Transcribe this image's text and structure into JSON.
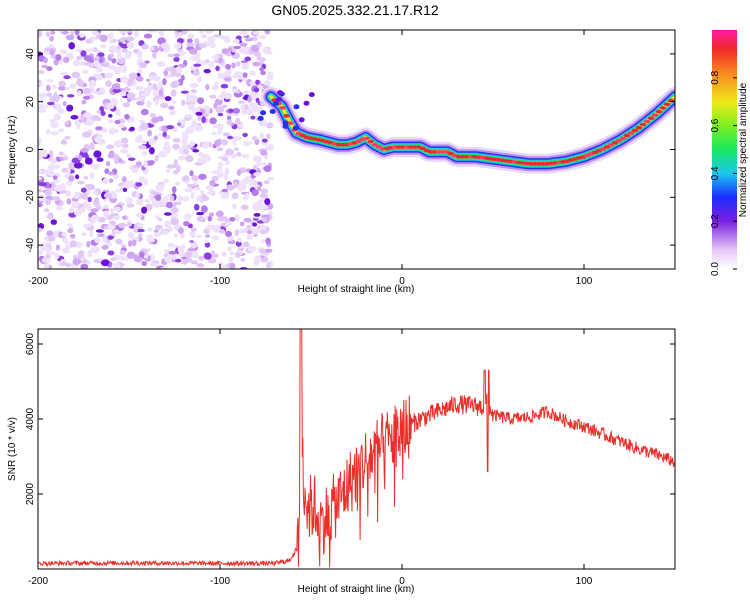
{
  "title": "GN05.2025.332.21.17.R12",
  "chart_data": [
    {
      "type": "heatmap",
      "panel": "spectrogram",
      "xlabel": "Height of straight line (km)",
      "ylabel": "Frequency (Hz)",
      "xlim": [
        -200,
        150
      ],
      "ylim": [
        -50,
        50
      ],
      "xticks": [
        -200,
        -100,
        0,
        100
      ],
      "yticks": [
        -40,
        -20,
        0,
        20,
        40
      ],
      "noise_region_x": [
        -200,
        -72
      ],
      "ridge": {
        "x": [
          -72,
          -66,
          -62,
          -58,
          -52,
          -45,
          -40,
          -35,
          -30,
          -25,
          -20,
          -15,
          -10,
          -5,
          0,
          5,
          10,
          15,
          20,
          25,
          30,
          40,
          50,
          60,
          70,
          80,
          90,
          100,
          110,
          120,
          130,
          140,
          150
        ],
        "frequency_hz": [
          22,
          18,
          12,
          7,
          5,
          4,
          3,
          2,
          2,
          3,
          5,
          2,
          0,
          1,
          1,
          1,
          1,
          -1,
          -1,
          -1,
          -3,
          -3,
          -4,
          -5,
          -6,
          -6,
          -5,
          -3,
          0,
          4,
          9,
          15,
          22
        ]
      },
      "colorbar": {
        "label": "Normalized spectral amplitude",
        "ticks": [
          0.0,
          0.2,
          0.4,
          0.6,
          0.8
        ],
        "range": [
          0,
          1
        ]
      }
    },
    {
      "type": "line",
      "panel": "snr",
      "xlabel": "Height of straight line (km)",
      "ylabel": "SNR (10 * v/v)",
      "xlim": [
        -200,
        150
      ],
      "ylim": [
        0,
        6400
      ],
      "xticks": [
        -200,
        -100,
        0,
        100
      ],
      "yticks": [
        2000,
        4000,
        6000
      ],
      "series": [
        {
          "name": "SNR",
          "color": "#e8302a",
          "x": [
            -200,
            -150,
            -100,
            -70,
            -62,
            -57,
            -55,
            -52,
            -48,
            -45,
            -40,
            -35,
            -30,
            -25,
            -20,
            -15,
            -10,
            -5,
            0,
            10,
            20,
            30,
            40,
            45,
            47,
            50,
            55,
            60,
            70,
            80,
            90,
            100,
            110,
            120,
            130,
            140,
            150
          ],
          "y": [
            150,
            160,
            150,
            150,
            220,
            600,
            3000,
            1600,
            1700,
            1200,
            1500,
            1800,
            2200,
            2600,
            2900,
            3100,
            3300,
            3500,
            3700,
            4000,
            4200,
            4400,
            4350,
            4300,
            4450,
            4100,
            4050,
            4000,
            4050,
            4200,
            3950,
            3800,
            3600,
            3400,
            3200,
            3050,
            2850
          ]
        }
      ]
    }
  ]
}
